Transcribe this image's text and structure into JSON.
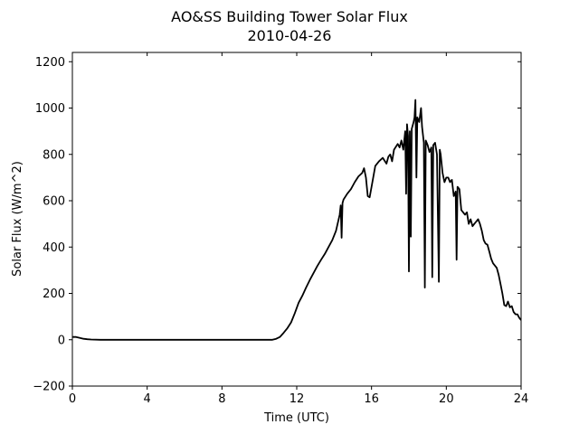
{
  "chart_data": {
    "type": "line",
    "title": "AO&SS Building Tower Solar Flux",
    "subtitle": "2010-04-26",
    "xlabel": "Time (UTC)",
    "ylabel": "Solar Flux (W/m^2)",
    "xlim": [
      0,
      24
    ],
    "ylim": [
      -200,
      1240
    ],
    "xticks": [
      0,
      4,
      8,
      12,
      16,
      20,
      24
    ],
    "yticks": [
      -200,
      0,
      200,
      400,
      600,
      800,
      1000,
      1200
    ],
    "grid": false,
    "line_color": "#000000",
    "series": [
      {
        "points": [
          [
            0,
            12
          ],
          [
            0.2,
            12
          ],
          [
            0.4,
            8
          ],
          [
            0.6,
            4
          ],
          [
            0.8,
            2
          ],
          [
            1.0,
            1
          ],
          [
            1.5,
            0
          ],
          [
            4,
            0
          ],
          [
            8,
            0
          ],
          [
            10.7,
            0
          ],
          [
            10.9,
            4
          ],
          [
            11.1,
            12
          ],
          [
            11.3,
            30
          ],
          [
            11.5,
            50
          ],
          [
            11.7,
            75
          ],
          [
            11.9,
            115
          ],
          [
            12.1,
            160
          ],
          [
            12.3,
            190
          ],
          [
            12.5,
            225
          ],
          [
            12.7,
            258
          ],
          [
            12.9,
            288
          ],
          [
            13.1,
            318
          ],
          [
            13.3,
            345
          ],
          [
            13.5,
            370
          ],
          [
            13.7,
            400
          ],
          [
            13.9,
            430
          ],
          [
            14.1,
            470
          ],
          [
            14.3,
            540
          ],
          [
            14.35,
            580
          ],
          [
            14.4,
            440
          ],
          [
            14.45,
            590
          ],
          [
            14.5,
            605
          ],
          [
            14.7,
            630
          ],
          [
            14.9,
            650
          ],
          [
            15.1,
            680
          ],
          [
            15.3,
            705
          ],
          [
            15.5,
            720
          ],
          [
            15.6,
            740
          ],
          [
            15.7,
            700
          ],
          [
            15.8,
            620
          ],
          [
            15.9,
            615
          ],
          [
            16.0,
            660
          ],
          [
            16.2,
            750
          ],
          [
            16.4,
            770
          ],
          [
            16.6,
            785
          ],
          [
            16.8,
            760
          ],
          [
            16.9,
            790
          ],
          [
            17.0,
            800
          ],
          [
            17.1,
            770
          ],
          [
            17.2,
            820
          ],
          [
            17.4,
            845
          ],
          [
            17.5,
            830
          ],
          [
            17.6,
            860
          ],
          [
            17.7,
            820
          ],
          [
            17.8,
            900
          ],
          [
            17.85,
            630
          ],
          [
            17.9,
            930
          ],
          [
            17.95,
            880
          ],
          [
            18.0,
            295
          ],
          [
            18.05,
            900
          ],
          [
            18.1,
            445
          ],
          [
            18.15,
            910
          ],
          [
            18.25,
            940
          ],
          [
            18.3,
            960
          ],
          [
            18.35,
            1035
          ],
          [
            18.4,
            700
          ],
          [
            18.45,
            960
          ],
          [
            18.55,
            940
          ],
          [
            18.65,
            1000
          ],
          [
            18.7,
            920
          ],
          [
            18.8,
            850
          ],
          [
            18.85,
            225
          ],
          [
            18.9,
            860
          ],
          [
            19.0,
            840
          ],
          [
            19.1,
            810
          ],
          [
            19.2,
            830
          ],
          [
            19.25,
            270
          ],
          [
            19.3,
            840
          ],
          [
            19.4,
            850
          ],
          [
            19.5,
            800
          ],
          [
            19.6,
            250
          ],
          [
            19.65,
            820
          ],
          [
            19.7,
            800
          ],
          [
            19.8,
            720
          ],
          [
            19.9,
            680
          ],
          [
            20.0,
            700
          ],
          [
            20.1,
            700
          ],
          [
            20.2,
            680
          ],
          [
            20.3,
            690
          ],
          [
            20.4,
            620
          ],
          [
            20.5,
            640
          ],
          [
            20.55,
            345
          ],
          [
            20.6,
            660
          ],
          [
            20.7,
            650
          ],
          [
            20.8,
            560
          ],
          [
            20.9,
            550
          ],
          [
            21.0,
            540
          ],
          [
            21.1,
            550
          ],
          [
            21.2,
            500
          ],
          [
            21.3,
            520
          ],
          [
            21.4,
            490
          ],
          [
            21.5,
            500
          ],
          [
            21.6,
            510
          ],
          [
            21.7,
            520
          ],
          [
            21.8,
            500
          ],
          [
            21.9,
            470
          ],
          [
            22.0,
            430
          ],
          [
            22.1,
            415
          ],
          [
            22.2,
            410
          ],
          [
            22.3,
            380
          ],
          [
            22.4,
            350
          ],
          [
            22.5,
            330
          ],
          [
            22.6,
            320
          ],
          [
            22.7,
            310
          ],
          [
            22.8,
            280
          ],
          [
            22.9,
            240
          ],
          [
            23.0,
            200
          ],
          [
            23.1,
            150
          ],
          [
            23.2,
            145
          ],
          [
            23.3,
            165
          ],
          [
            23.4,
            140
          ],
          [
            23.5,
            145
          ],
          [
            23.6,
            120
          ],
          [
            23.7,
            110
          ],
          [
            23.8,
            110
          ],
          [
            23.9,
            95
          ],
          [
            24.0,
            85
          ]
        ]
      }
    ]
  }
}
